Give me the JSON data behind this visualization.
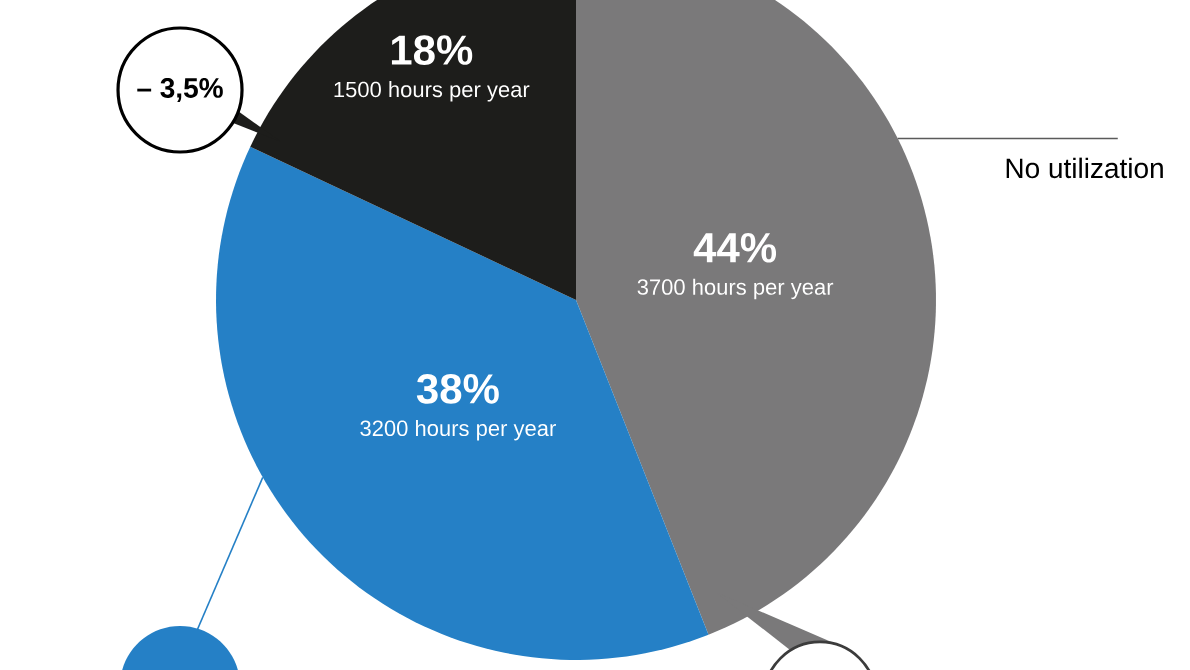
{
  "chart_data": {
    "type": "pie",
    "categories": [
      "No utilization",
      null,
      null
    ],
    "values": [
      44,
      38,
      18
    ],
    "colors": [
      "#7a797a",
      "#2580c6",
      "#1d1d1b"
    ],
    "value_labels": [
      "44%",
      "38%",
      "18%"
    ],
    "annotations": [
      "3700 hours per year",
      "3200 hours per year",
      "1500 hours per year",
      "– 3,5%"
    ]
  }
}
